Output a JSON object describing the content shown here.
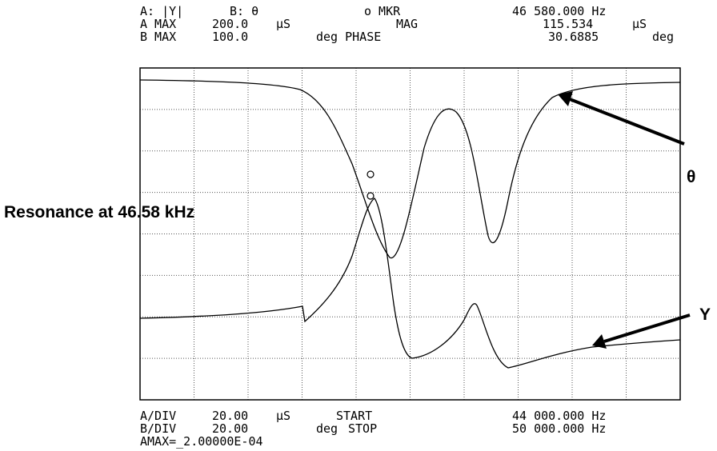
{
  "header": {
    "line1": [
      "A: |Y|",
      "B: θ",
      "o MKR",
      "46 580.000 Hz"
    ],
    "line2": [
      "A MAX",
      "200.0",
      "µS",
      "MAG",
      "115.534",
      "µS"
    ],
    "line3": [
      "B MAX",
      "100.0",
      "deg PHASE",
      "30.6885",
      "deg"
    ]
  },
  "footer": {
    "line1": [
      "A/DIV",
      "20.00",
      "µS",
      "START",
      "44 000.000 Hz"
    ],
    "line2": [
      "B/DIV",
      "20.00",
      "deg",
      "STOP",
      "50 000.000 Hz"
    ],
    "line3": [
      "AMAX=_2.00000E-04"
    ]
  },
  "annotations": {
    "resonance": "Resonance at 46.58 kHz",
    "theta": "θ",
    "y": "Y"
  }
}
